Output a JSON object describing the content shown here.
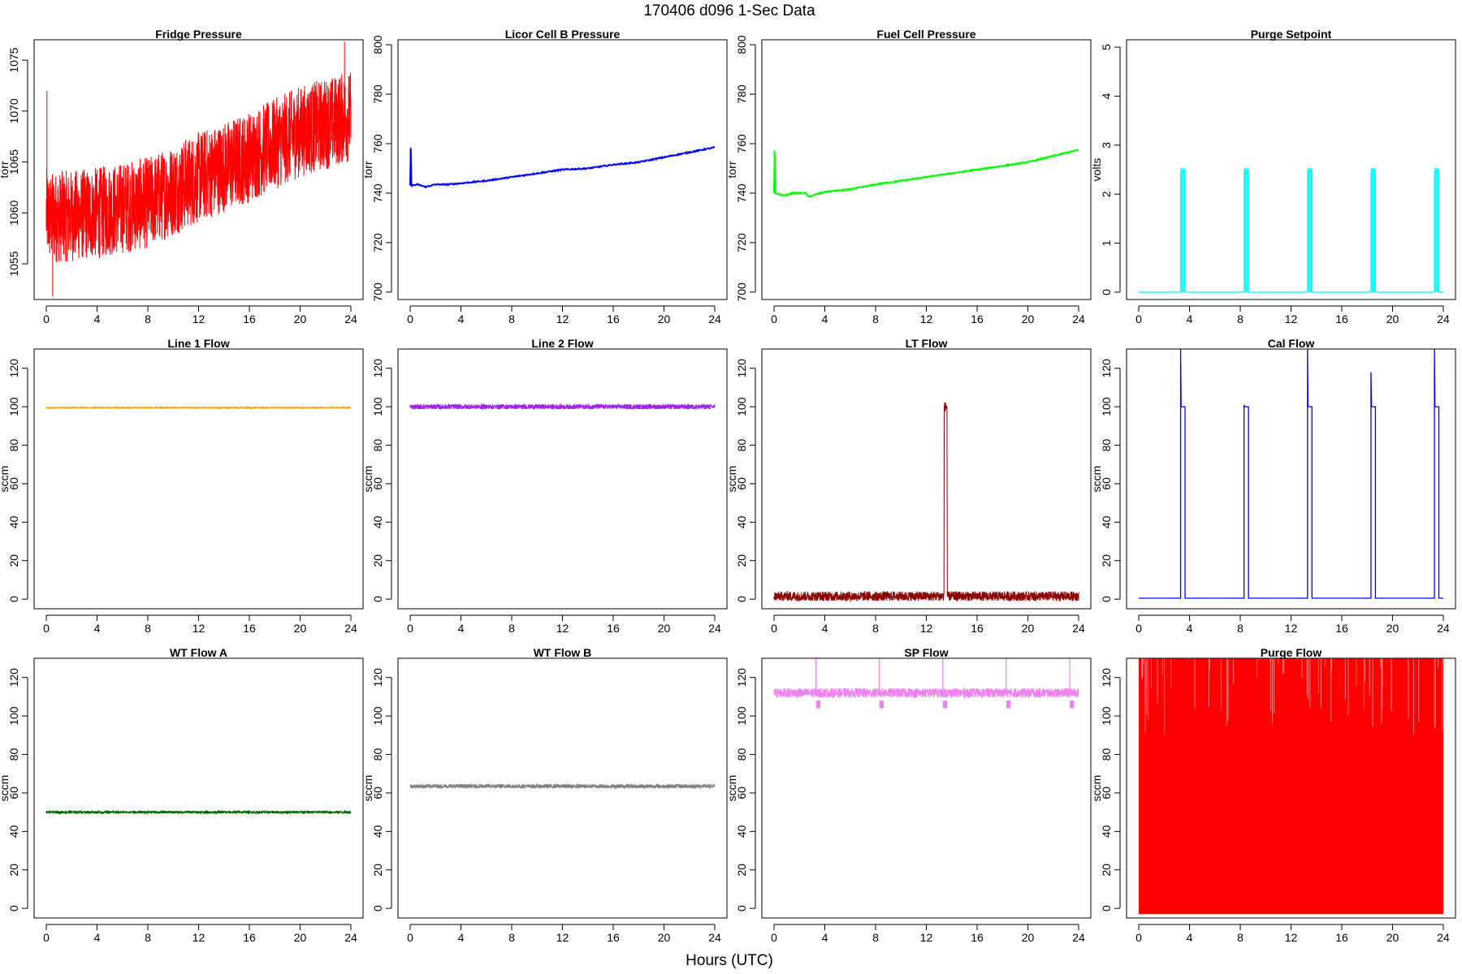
{
  "figure": {
    "title": "170406   d096   1-Sec Data",
    "xlabel": "Hours (UTC)"
  },
  "chart_data": [
    {
      "id": "fridge-pressure",
      "type": "line",
      "title": "Fridge Pressure",
      "ylabel": "torr",
      "color": "#ff0000",
      "render": "noisy-band",
      "xlim": [
        0,
        24
      ],
      "ylim": [
        1051.5,
        1077
      ],
      "xticks": [
        0,
        4,
        8,
        12,
        16,
        20,
        24
      ],
      "yticks": [
        1055,
        1060,
        1065,
        1070,
        1075
      ],
      "x": [
        0,
        0.3,
        4,
        8,
        12,
        16,
        20,
        24
      ],
      "values": [
        1060,
        1059.5,
        1060,
        1061,
        1063.5,
        1065.5,
        1068,
        1069.5
      ],
      "noise": 4.5,
      "spikes": [
        {
          "x": 0.05,
          "y": 1072
        },
        {
          "x": 0.5,
          "y": 1051.8
        },
        {
          "x": 23.5,
          "y": 1076.8
        }
      ]
    },
    {
      "id": "licor-cell-b-pressure",
      "type": "line",
      "title": "Licor Cell B Pressure",
      "ylabel": "torr",
      "color": "#0000ff",
      "render": "line",
      "xlim": [
        0,
        24
      ],
      "ylim": [
        697,
        802
      ],
      "xticks": [
        0,
        4,
        8,
        12,
        16,
        20,
        24
      ],
      "yticks": [
        700,
        720,
        740,
        760,
        780,
        800
      ],
      "x": [
        0,
        0.05,
        0.1,
        0.6,
        1.2,
        2,
        3,
        4,
        6,
        8,
        10,
        12,
        14,
        16,
        18,
        20,
        22,
        24
      ],
      "values": [
        743,
        758.5,
        743,
        743.5,
        742.5,
        743.5,
        743.5,
        744,
        745,
        746.5,
        748,
        749.5,
        750,
        751.5,
        752.5,
        754.5,
        756.5,
        758.5
      ]
    },
    {
      "id": "fuel-cell-pressure",
      "type": "line",
      "title": "Fuel Cell Pressure",
      "ylabel": "torr",
      "color": "#00ff00",
      "render": "line",
      "xlim": [
        0,
        24
      ],
      "ylim": [
        697,
        802
      ],
      "xticks": [
        0,
        4,
        8,
        12,
        16,
        20,
        24
      ],
      "yticks": [
        700,
        720,
        740,
        760,
        780,
        800
      ],
      "x": [
        0,
        0.05,
        0.1,
        0.8,
        1.5,
        2.5,
        2.7,
        4,
        6,
        8,
        10,
        12,
        14,
        16,
        18,
        20,
        22,
        24
      ],
      "values": [
        740,
        757.5,
        740,
        739,
        740,
        740,
        738.5,
        740.5,
        741.5,
        743.5,
        745,
        746.5,
        748,
        749.5,
        751,
        752.5,
        755,
        757.5
      ]
    },
    {
      "id": "purge-setpoint",
      "type": "line",
      "title": "Purge Setpoint",
      "ylabel": "volts",
      "color": "#00ffff",
      "render": "pulses",
      "xlim": [
        0,
        24
      ],
      "ylim": [
        -0.15,
        5.15
      ],
      "xticks": [
        0,
        4,
        8,
        12,
        16,
        20,
        24
      ],
      "yticks": [
        0,
        1,
        2,
        3,
        4,
        5
      ],
      "baseline": 0,
      "level": 2.45,
      "pulses": [
        3.3,
        8.3,
        13.3,
        18.3,
        23.3
      ],
      "pulse_width": 0.35
    },
    {
      "id": "line-1-flow",
      "type": "line",
      "title": "Line 1 Flow",
      "ylabel": "sccm",
      "color": "#ffa500",
      "render": "noisy-band",
      "xlim": [
        0,
        24
      ],
      "ylim": [
        -5,
        130
      ],
      "xticks": [
        0,
        4,
        8,
        12,
        16,
        20,
        24
      ],
      "yticks": [
        0,
        20,
        40,
        60,
        80,
        100,
        120
      ],
      "x": [
        0,
        24
      ],
      "values": [
        99.5,
        99.5
      ],
      "noise": 0.4
    },
    {
      "id": "line-2-flow",
      "type": "line",
      "title": "Line 2 Flow",
      "ylabel": "sccm",
      "color": "#a020f0",
      "render": "noisy-band",
      "xlim": [
        0,
        24
      ],
      "ylim": [
        -5,
        130
      ],
      "xticks": [
        0,
        4,
        8,
        12,
        16,
        20,
        24
      ],
      "yticks": [
        0,
        20,
        40,
        60,
        80,
        100,
        120
      ],
      "x": [
        0,
        24
      ],
      "values": [
        100,
        100
      ],
      "noise": 1.3
    },
    {
      "id": "lt-flow",
      "type": "line",
      "title": "LT Flow",
      "ylabel": "sccm",
      "color": "#8b0000",
      "render": "noisy-band",
      "xlim": [
        0,
        24
      ],
      "ylim": [
        -5,
        130
      ],
      "xticks": [
        0,
        4,
        8,
        12,
        16,
        20,
        24
      ],
      "yticks": [
        0,
        20,
        40,
        60,
        80,
        100,
        120
      ],
      "x": [
        0,
        13.4,
        13.4,
        13.65,
        13.65,
        24
      ],
      "values": [
        1.5,
        1.5,
        100,
        100,
        1.5,
        1.5
      ],
      "noise": 2.5
    },
    {
      "id": "cal-flow",
      "type": "line",
      "title": "Cal Flow",
      "ylabel": "sccm",
      "color": "#0000ff",
      "render": "pulses",
      "xlim": [
        0,
        24
      ],
      "ylim": [
        -5,
        130
      ],
      "xticks": [
        0,
        4,
        8,
        12,
        16,
        20,
        24
      ],
      "yticks": [
        0,
        20,
        40,
        60,
        80,
        100,
        120
      ],
      "baseline": 0.5,
      "level": 100,
      "pulses": [
        3.3,
        8.3,
        13.3,
        18.3,
        23.3
      ],
      "pulse_width": 0.35,
      "pulse_peaks": [
        130,
        101,
        130,
        118,
        130
      ]
    },
    {
      "id": "wt-flow-a",
      "type": "line",
      "title": "WT Flow A",
      "ylabel": "sccm",
      "color": "#006400",
      "render": "noisy-band",
      "xlim": [
        0,
        24
      ],
      "ylim": [
        -5,
        130
      ],
      "xticks": [
        0,
        4,
        8,
        12,
        16,
        20,
        24
      ],
      "yticks": [
        0,
        20,
        40,
        60,
        80,
        100,
        120
      ],
      "x": [
        0,
        24
      ],
      "values": [
        50,
        50
      ],
      "noise": 0.7
    },
    {
      "id": "wt-flow-b",
      "type": "line",
      "title": "WT Flow B",
      "ylabel": "sccm",
      "color": "#808080",
      "render": "noisy-band",
      "xlim": [
        0,
        24
      ],
      "ylim": [
        -5,
        130
      ],
      "xticks": [
        0,
        4,
        8,
        12,
        16,
        20,
        24
      ],
      "yticks": [
        0,
        20,
        40,
        60,
        80,
        100,
        120
      ],
      "x": [
        0,
        24
      ],
      "values": [
        63.5,
        63.5
      ],
      "noise": 1.1
    },
    {
      "id": "sp-flow",
      "type": "line",
      "title": "SP Flow",
      "ylabel": "sccm",
      "color": "#ee82ee",
      "render": "noisy-band",
      "xlim": [
        0,
        24
      ],
      "ylim": [
        -5,
        130
      ],
      "xticks": [
        0,
        4,
        8,
        12,
        16,
        20,
        24
      ],
      "yticks": [
        0,
        20,
        40,
        60,
        80,
        100,
        120
      ],
      "x": [
        0,
        24
      ],
      "values": [
        112,
        112
      ],
      "noise": 2.5,
      "pulses": [
        3.3,
        8.3,
        13.3,
        18.3,
        23.3
      ],
      "pulse_drop": 106,
      "pulse_spike": 130
    },
    {
      "id": "purge-flow",
      "type": "line",
      "title": "Purge Flow",
      "ylabel": "sccm",
      "color": "#ff0000",
      "render": "full-fill",
      "xlim": [
        0,
        24
      ],
      "ylim": [
        -5,
        130
      ],
      "xticks": [
        0,
        4,
        8,
        12,
        16,
        20,
        24
      ],
      "yticks": [
        0,
        20,
        40,
        60,
        80,
        100,
        120
      ],
      "x": [
        0,
        24
      ],
      "values": [
        -3,
        130
      ]
    }
  ]
}
